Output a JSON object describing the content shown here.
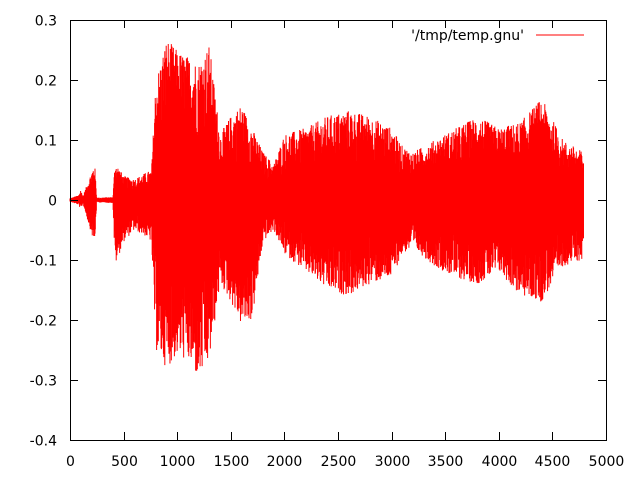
{
  "chart_data": {
    "type": "line",
    "title": "",
    "xlabel": "",
    "ylabel": "",
    "xlim": [
      0,
      5000
    ],
    "ylim": [
      -0.4,
      0.3
    ],
    "x_ticks": [
      0,
      500,
      1000,
      1500,
      2000,
      2500,
      3000,
      3500,
      4000,
      4500,
      5000
    ],
    "x_tick_labels": [
      "0",
      "500",
      "1000",
      "1500",
      "2000",
      "2500",
      "3000",
      "3500",
      "4000",
      "4500",
      "5000"
    ],
    "y_ticks": [
      0.3,
      0.2,
      0.1,
      0,
      -0.1,
      -0.2,
      -0.3,
      -0.4
    ],
    "y_tick_labels": [
      "0.3",
      "0.2",
      "0.1",
      "0",
      "-0.1",
      "-0.2",
      "-0.3",
      "-0.4"
    ],
    "grid": false,
    "legend_position": "top-right",
    "series": [
      {
        "name": "'/tmp/temp.gnu'",
        "color": "#ff0000",
        "x_range": [
          0,
          4790
        ],
        "envelope": [
          {
            "x": 0,
            "max": 0.003,
            "min": -0.003
          },
          {
            "x": 80,
            "max": 0.008,
            "min": -0.008
          },
          {
            "x": 100,
            "max": 0.018,
            "min": -0.016
          },
          {
            "x": 120,
            "max": 0.006,
            "min": -0.006
          },
          {
            "x": 230,
            "max": 0.062,
            "min": -0.075
          },
          {
            "x": 250,
            "max": 0.004,
            "min": -0.004
          },
          {
            "x": 400,
            "max": 0.005,
            "min": -0.005
          },
          {
            "x": 420,
            "max": 0.065,
            "min": -0.11
          },
          {
            "x": 500,
            "max": 0.04,
            "min": -0.07
          },
          {
            "x": 600,
            "max": 0.035,
            "min": -0.05
          },
          {
            "x": 700,
            "max": 0.045,
            "min": -0.06
          },
          {
            "x": 760,
            "max": 0.05,
            "min": -0.07
          },
          {
            "x": 800,
            "max": 0.2,
            "min": -0.25
          },
          {
            "x": 900,
            "max": 0.27,
            "min": -0.28
          },
          {
            "x": 1000,
            "max": 0.25,
            "min": -0.26
          },
          {
            "x": 1100,
            "max": 0.24,
            "min": -0.27
          },
          {
            "x": 1200,
            "max": 0.23,
            "min": -0.3
          },
          {
            "x": 1300,
            "max": 0.26,
            "min": -0.27
          },
          {
            "x": 1400,
            "max": 0.11,
            "min": -0.14
          },
          {
            "x": 1500,
            "max": 0.14,
            "min": -0.17
          },
          {
            "x": 1600,
            "max": 0.16,
            "min": -0.21
          },
          {
            "x": 1700,
            "max": 0.12,
            "min": -0.2
          },
          {
            "x": 1800,
            "max": 0.08,
            "min": -0.07
          },
          {
            "x": 1900,
            "max": 0.06,
            "min": -0.05
          },
          {
            "x": 2000,
            "max": 0.11,
            "min": -0.09
          },
          {
            "x": 2200,
            "max": 0.12,
            "min": -0.12
          },
          {
            "x": 2400,
            "max": 0.14,
            "min": -0.15
          },
          {
            "x": 2600,
            "max": 0.15,
            "min": -0.16
          },
          {
            "x": 2800,
            "max": 0.14,
            "min": -0.14
          },
          {
            "x": 3000,
            "max": 0.12,
            "min": -0.13
          },
          {
            "x": 3100,
            "max": 0.09,
            "min": -0.09
          },
          {
            "x": 3200,
            "max": 0.08,
            "min": -0.08
          },
          {
            "x": 3400,
            "max": 0.1,
            "min": -0.11
          },
          {
            "x": 3600,
            "max": 0.12,
            "min": -0.13
          },
          {
            "x": 3800,
            "max": 0.14,
            "min": -0.14
          },
          {
            "x": 4000,
            "max": 0.12,
            "min": -0.12
          },
          {
            "x": 4200,
            "max": 0.13,
            "min": -0.16
          },
          {
            "x": 4400,
            "max": 0.17,
            "min": -0.17
          },
          {
            "x": 4600,
            "max": 0.1,
            "min": -0.11
          },
          {
            "x": 4790,
            "max": 0.08,
            "min": -0.1
          }
        ]
      }
    ]
  }
}
